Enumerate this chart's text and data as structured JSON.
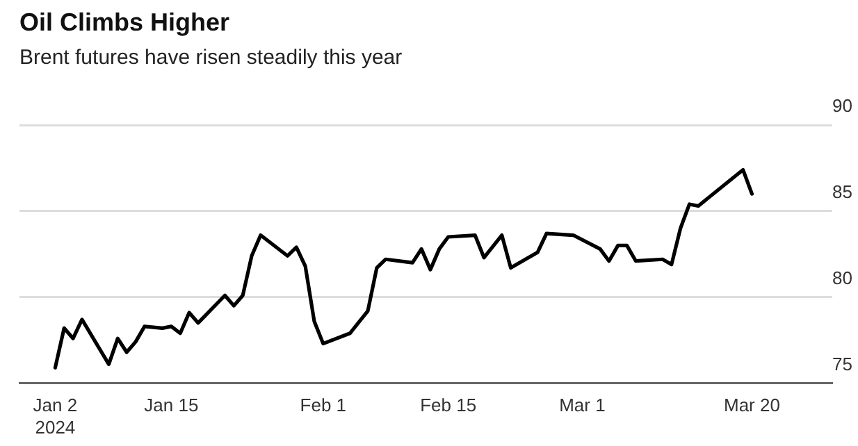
{
  "chart_data": {
    "type": "line",
    "title": "Oil Climbs Higher",
    "subtitle": "Brent futures have risen steadily this year",
    "x": [
      "2024-01-02",
      "2024-01-03",
      "2024-01-04",
      "2024-01-05",
      "2024-01-08",
      "2024-01-09",
      "2024-01-10",
      "2024-01-11",
      "2024-01-12",
      "2024-01-14",
      "2024-01-15",
      "2024-01-16",
      "2024-01-17",
      "2024-01-18",
      "2024-01-21",
      "2024-01-22",
      "2024-01-23",
      "2024-01-24",
      "2024-01-25",
      "2024-01-28",
      "2024-01-29",
      "2024-01-30",
      "2024-01-31",
      "2024-02-01",
      "2024-02-04",
      "2024-02-06",
      "2024-02-07",
      "2024-02-08",
      "2024-02-11",
      "2024-02-12",
      "2024-02-13",
      "2024-02-14",
      "2024-02-15",
      "2024-02-18",
      "2024-02-19",
      "2024-02-21",
      "2024-02-22",
      "2024-02-25",
      "2024-02-26",
      "2024-02-29",
      "2024-03-03",
      "2024-03-04",
      "2024-03-05",
      "2024-03-06",
      "2024-03-07",
      "2024-03-10",
      "2024-03-11",
      "2024-03-12",
      "2024-03-13",
      "2024-03-14",
      "2024-03-19",
      "2024-03-20"
    ],
    "series": [
      {
        "color": "#000000",
        "values": [
          75.9,
          78.2,
          77.6,
          78.7,
          76.1,
          77.6,
          76.8,
          77.4,
          78.3,
          78.2,
          78.3,
          77.9,
          79.1,
          78.5,
          80.1,
          79.5,
          80.1,
          82.4,
          83.6,
          82.4,
          82.9,
          81.8,
          78.6,
          77.3,
          77.9,
          79.2,
          81.7,
          82.2,
          82.0,
          82.8,
          81.6,
          82.8,
          83.5,
          83.6,
          82.3,
          83.6,
          81.7,
          82.6,
          83.7,
          83.6,
          82.8,
          82.1,
          83.0,
          83.0,
          82.1,
          82.2,
          81.9,
          84.0,
          85.4,
          85.3,
          87.4,
          86.0
        ]
      }
    ],
    "xlim": [
      "2023-12-29",
      "2024-03-29"
    ],
    "xticks": [
      {
        "value": "2024-01-02",
        "label": "Jan 2\n2024"
      },
      {
        "value": "2024-01-15",
        "label": "Jan 15"
      },
      {
        "value": "2024-02-01",
        "label": "Feb 1"
      },
      {
        "value": "2024-02-15",
        "label": "Feb 15"
      },
      {
        "value": "2024-03-01",
        "label": "Mar 1"
      },
      {
        "value": "2024-03-20",
        "label": "Mar 20"
      }
    ],
    "ylim": [
      75,
      90
    ],
    "yticks": [
      75,
      80,
      85,
      90
    ],
    "grid": "y",
    "marker": "none",
    "line_style": "solid"
  }
}
